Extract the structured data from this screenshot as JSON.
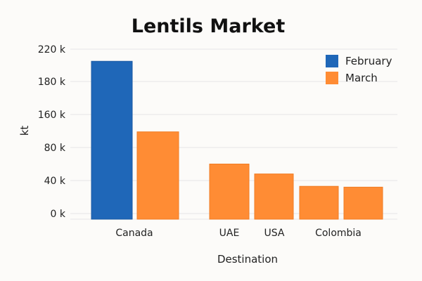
{
  "chart_data": {
    "type": "bar",
    "title": "Lentils Market",
    "xlabel": "Destination",
    "ylabel": "kt",
    "y_ticks": [
      "0 k",
      "40 k",
      "80 k",
      "160 k",
      "180 k",
      "220 k"
    ],
    "grid": true,
    "legend_position": "top-right",
    "series": [
      {
        "name": "February",
        "color": "#1f67b8"
      },
      {
        "name": "March",
        "color": "#ff8c34"
      }
    ],
    "bars": [
      {
        "category": "Canada",
        "series": "February",
        "value": 205
      },
      {
        "category": "Canada",
        "series": "March",
        "value": 118
      },
      {
        "category": "UAE",
        "series": "March",
        "value": 60
      },
      {
        "category": "USA",
        "series": "March",
        "value": 48
      },
      {
        "category": "",
        "series": "March",
        "value": 33
      },
      {
        "category": "Colombia",
        "series": "March",
        "value": 32
      }
    ],
    "x_labels": [
      "Canada",
      "UAE",
      "USA",
      "Colombia"
    ]
  }
}
